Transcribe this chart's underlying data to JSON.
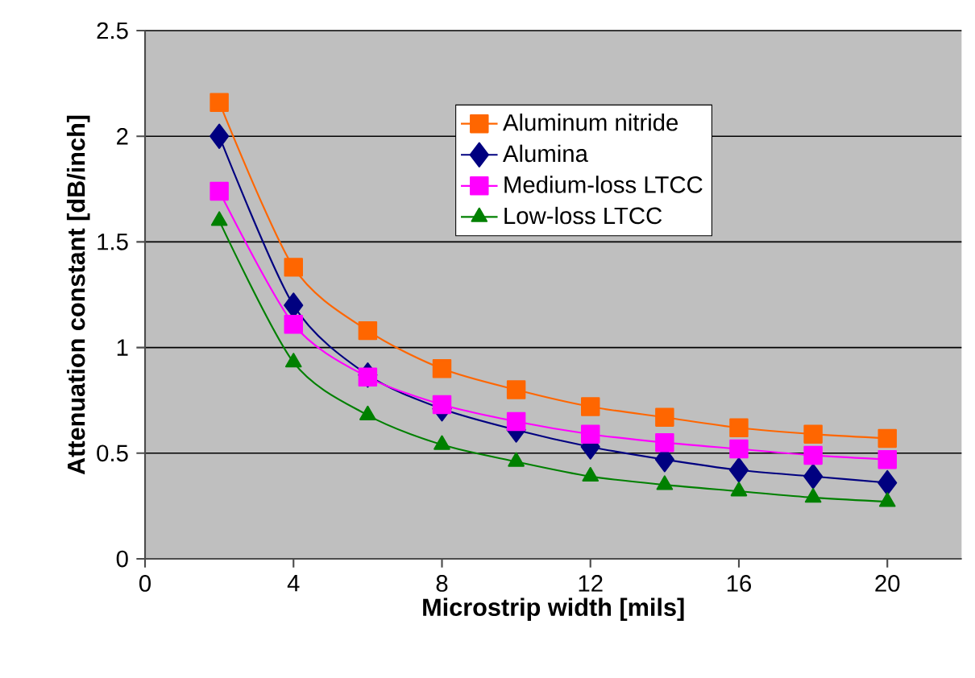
{
  "chart_data": {
    "type": "line",
    "xlabel": "Microstrip width [mils]",
    "ylabel": "Attenuation constant [dB/inch]",
    "x": [
      2,
      4,
      6,
      8,
      10,
      12,
      14,
      16,
      18,
      20
    ],
    "series": [
      {
        "name": "Aluminum nitride",
        "color": "#ff6600",
        "marker": "square",
        "values": [
          2.16,
          1.38,
          1.08,
          0.9,
          0.8,
          0.72,
          0.67,
          0.62,
          0.59,
          0.57
        ]
      },
      {
        "name": "Alumina",
        "color": "#000080",
        "marker": "diamond",
        "values": [
          2.0,
          1.2,
          0.87,
          0.71,
          0.61,
          0.53,
          0.47,
          0.42,
          0.39,
          0.36
        ]
      },
      {
        "name": "Medium-loss LTCC",
        "color": "#ff00ff",
        "marker": "square",
        "values": [
          1.74,
          1.11,
          0.86,
          0.73,
          0.65,
          0.59,
          0.55,
          0.52,
          0.49,
          0.47
        ]
      },
      {
        "name": "Low-loss LTCC",
        "color": "#008000",
        "marker": "triangle",
        "values": [
          1.6,
          0.93,
          0.68,
          0.54,
          0.46,
          0.39,
          0.35,
          0.32,
          0.29,
          0.27
        ]
      }
    ],
    "xlim": [
      0,
      22
    ],
    "xticks": [
      0,
      4,
      8,
      12,
      16,
      20
    ],
    "ylim": [
      0,
      2.5
    ],
    "yticks": [
      0,
      0.5,
      1,
      1.5,
      2,
      2.5
    ],
    "grid": "y",
    "legend": "top right",
    "line_style": "solid"
  }
}
